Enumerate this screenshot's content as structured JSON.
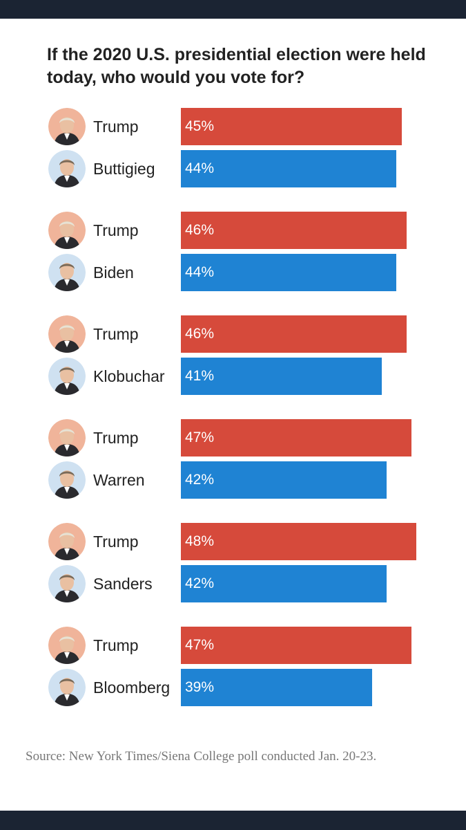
{
  "chart_data": {
    "type": "bar",
    "orientation": "horizontal",
    "title": "If the 2020 U.S. presidential election were held today, who would you vote for?",
    "source": "Source: New York Times/Siena College poll conducted Jan. 20-23.",
    "unit": "%",
    "colors": {
      "republican": "#d64a3b",
      "democrat": "#1f83d3"
    },
    "matchups": [
      {
        "rows": [
          {
            "candidate": "Trump",
            "value": 45,
            "label": "45%",
            "party": "republican"
          },
          {
            "candidate": "Buttigieg",
            "value": 44,
            "label": "44%",
            "party": "democrat"
          }
        ]
      },
      {
        "rows": [
          {
            "candidate": "Trump",
            "value": 46,
            "label": "46%",
            "party": "republican"
          },
          {
            "candidate": "Biden",
            "value": 44,
            "label": "44%",
            "party": "democrat"
          }
        ]
      },
      {
        "rows": [
          {
            "candidate": "Trump",
            "value": 46,
            "label": "46%",
            "party": "republican"
          },
          {
            "candidate": "Klobuchar",
            "value": 41,
            "label": "41%",
            "party": "democrat"
          }
        ]
      },
      {
        "rows": [
          {
            "candidate": "Trump",
            "value": 47,
            "label": "47%",
            "party": "republican"
          },
          {
            "candidate": "Warren",
            "value": 42,
            "label": "42%",
            "party": "democrat"
          }
        ]
      },
      {
        "rows": [
          {
            "candidate": "Trump",
            "value": 48,
            "label": "48%",
            "party": "republican"
          },
          {
            "candidate": "Sanders",
            "value": 42,
            "label": "42%",
            "party": "democrat"
          }
        ]
      },
      {
        "rows": [
          {
            "candidate": "Trump",
            "value": 47,
            "label": "47%",
            "party": "republican"
          },
          {
            "candidate": "Bloomberg",
            "value": 39,
            "label": "39%",
            "party": "democrat"
          }
        ]
      }
    ]
  }
}
